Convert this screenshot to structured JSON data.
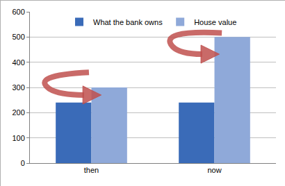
{
  "chart_data": {
    "type": "bar",
    "categories": [
      "then",
      "now"
    ],
    "series": [
      {
        "name": "What the bank owns",
        "color": "#3a6bb8",
        "values": [
          240,
          240
        ]
      },
      {
        "name": "House value",
        "color": "#8fa9d9",
        "values": [
          300,
          500
        ]
      }
    ],
    "ylim": [
      0,
      600
    ],
    "yticks": [
      0,
      100,
      200,
      300,
      400,
      500,
      600
    ],
    "grid": true,
    "legend": "top"
  }
}
